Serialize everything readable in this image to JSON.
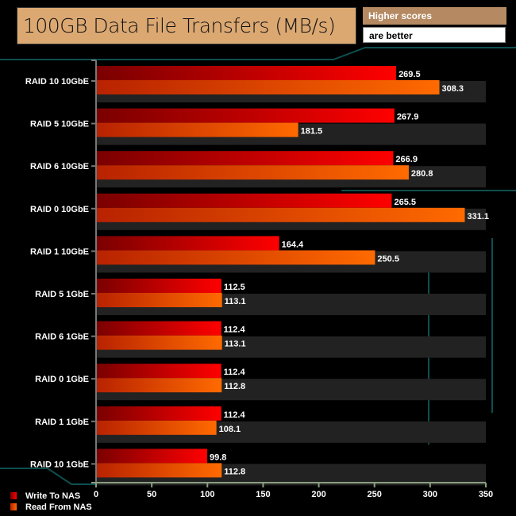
{
  "chart_data": {
    "type": "bar",
    "orientation": "horizontal",
    "title": "100GB Data File Transfers (MB/s)",
    "note": [
      "Higher scores",
      "are better"
    ],
    "categories": [
      "RAID 10 10GbE",
      "RAID 5 10GbE",
      "RAID 6 10GbE",
      "RAID 0 10GbE",
      "RAID 1 10GbE",
      "RAID 5 1GbE",
      "RAID 6 1GbE",
      "RAID 0 1GbE",
      "RAID 1 1GbE",
      "RAID 10 1GbE"
    ],
    "series": [
      {
        "name": "Write To NAS",
        "color": "#e00000",
        "values": [
          269.5,
          267.9,
          266.9,
          265.5,
          164.4,
          112.5,
          112.4,
          112.4,
          112.4,
          99.8
        ]
      },
      {
        "name": "Read From NAS",
        "color": "#ff6600",
        "values": [
          308.3,
          181.5,
          280.8,
          331.1,
          250.5,
          113.1,
          113.1,
          112.8,
          108.1,
          112.8
        ]
      }
    ],
    "xlim": [
      0,
      350
    ],
    "xticks": [
      0,
      50,
      100,
      150,
      200,
      250,
      300,
      350
    ],
    "legend": "bottom-left"
  }
}
